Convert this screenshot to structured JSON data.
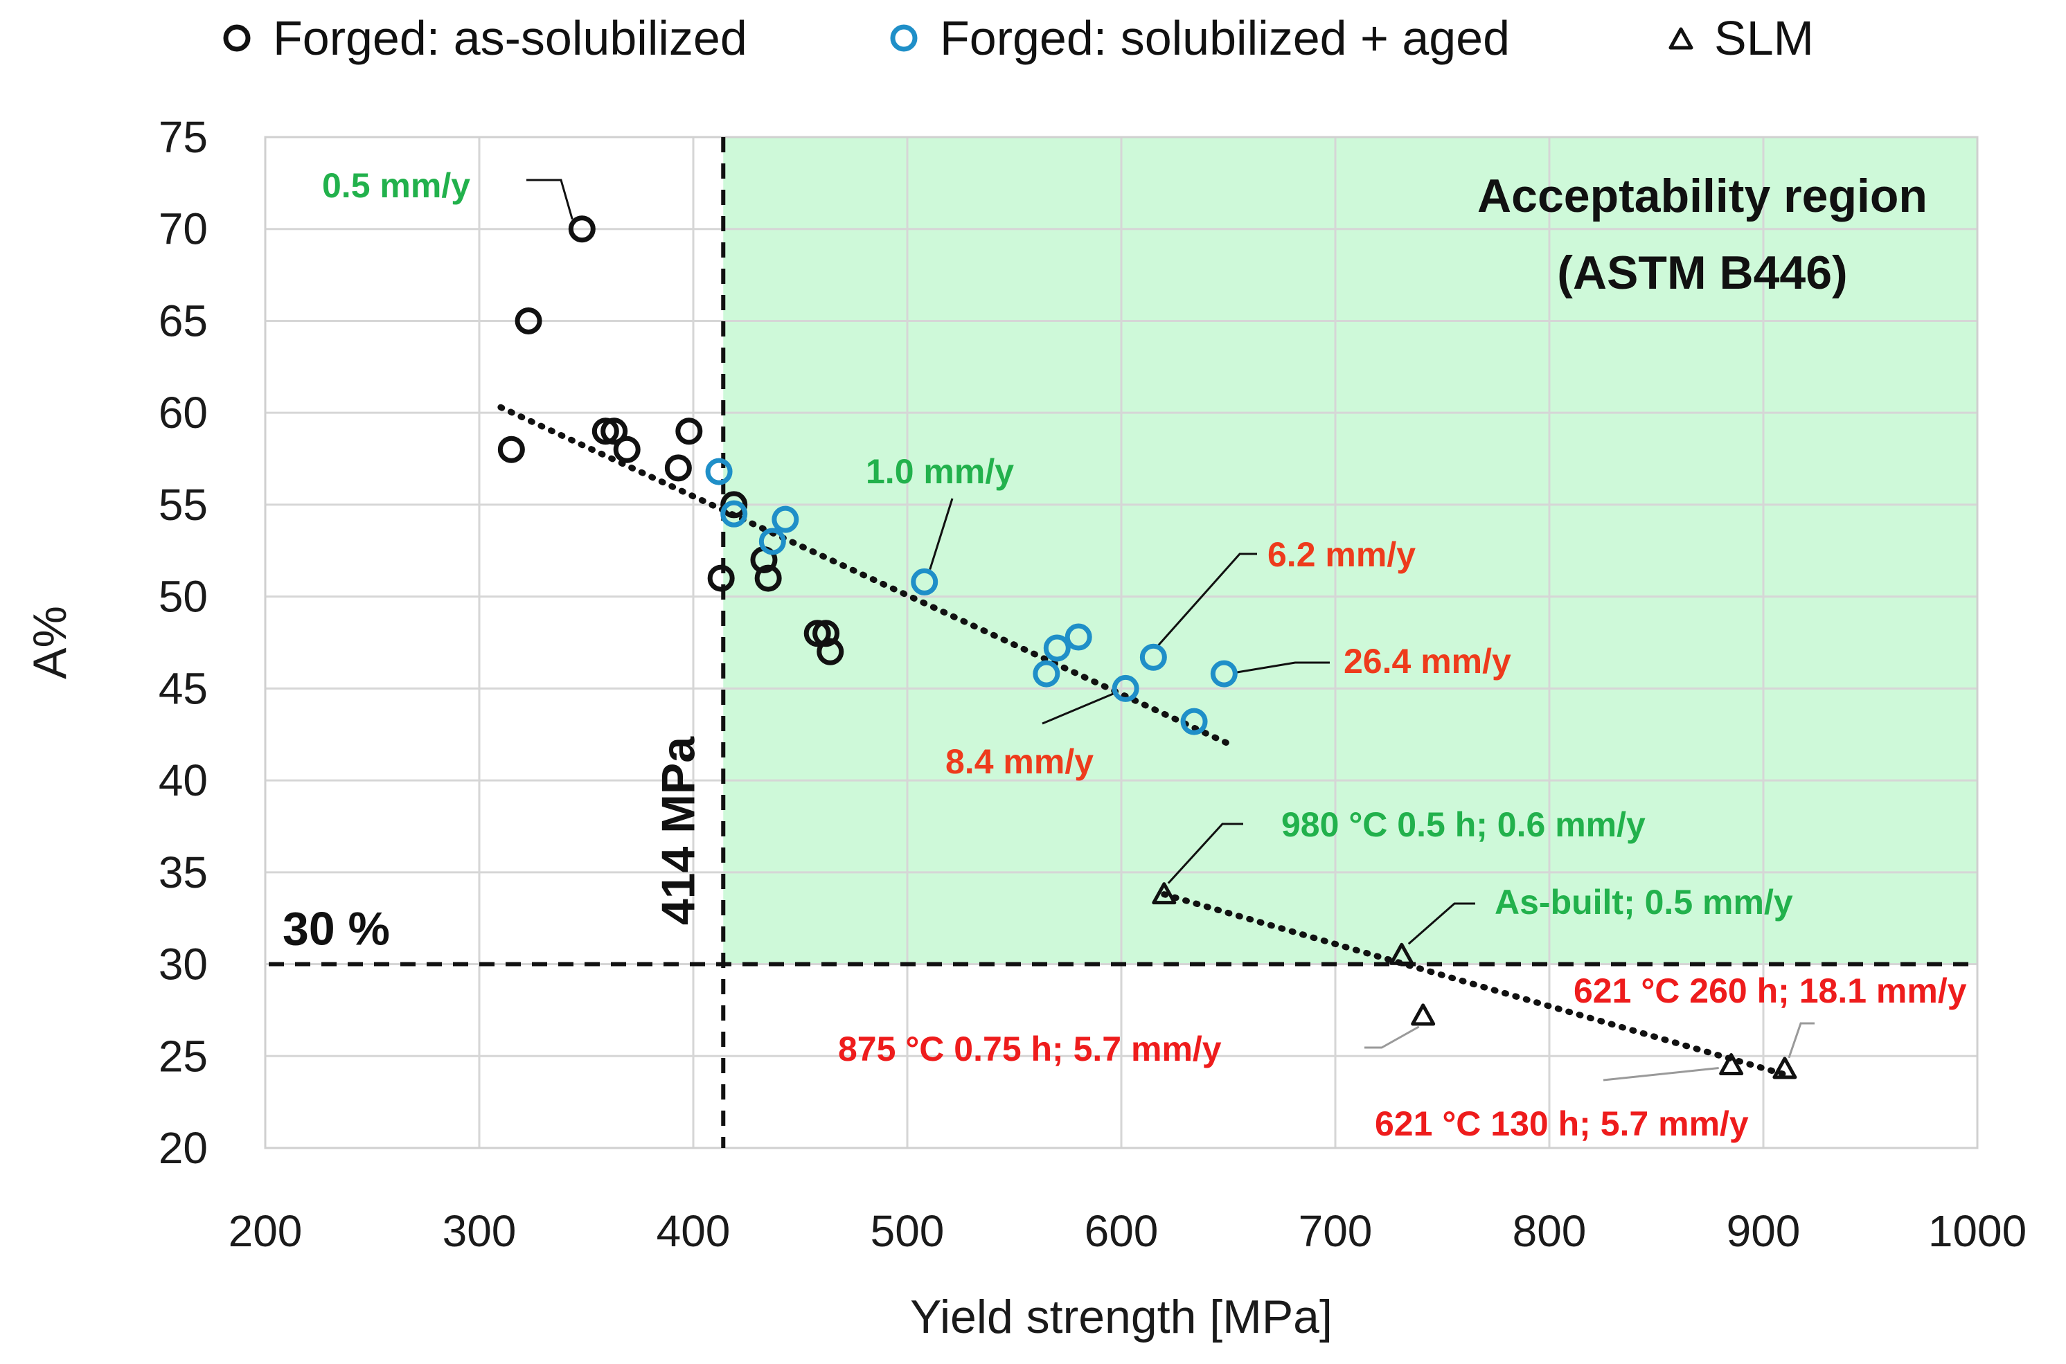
{
  "chart_data": {
    "type": "scatter",
    "title": "",
    "xlabel": "Yield strength [MPa]",
    "ylabel": "A%",
    "xlim": [
      200,
      1000
    ],
    "ylim": [
      20,
      75
    ],
    "x_ticks": [
      200,
      300,
      400,
      500,
      600,
      700,
      800,
      900,
      1000
    ],
    "y_ticks": [
      20,
      25,
      30,
      35,
      40,
      45,
      50,
      55,
      60,
      65,
      70,
      75
    ],
    "grid": true,
    "legend_position": "top",
    "series": [
      {
        "name": "Forged: as-solubilized",
        "marker": "circle",
        "color": "#111111",
        "points": [
          {
            "x": 348,
            "y": 70
          },
          {
            "x": 323,
            "y": 65
          },
          {
            "x": 315,
            "y": 58
          },
          {
            "x": 359,
            "y": 59
          },
          {
            "x": 363,
            "y": 59
          },
          {
            "x": 369,
            "y": 58
          },
          {
            "x": 393,
            "y": 57
          },
          {
            "x": 398,
            "y": 59
          },
          {
            "x": 413,
            "y": 51
          },
          {
            "x": 419,
            "y": 55
          },
          {
            "x": 433,
            "y": 52
          },
          {
            "x": 435,
            "y": 51
          },
          {
            "x": 458,
            "y": 48
          },
          {
            "x": 462,
            "y": 48
          },
          {
            "x": 464,
            "y": 47
          }
        ]
      },
      {
        "name": "Forged: solubilized + aged",
        "marker": "circle",
        "color": "#1f8fc8",
        "points": [
          {
            "x": 412,
            "y": 56.8
          },
          {
            "x": 419,
            "y": 54.5
          },
          {
            "x": 437,
            "y": 53
          },
          {
            "x": 443,
            "y": 54.2
          },
          {
            "x": 508,
            "y": 50.8
          },
          {
            "x": 565,
            "y": 45.8
          },
          {
            "x": 570,
            "y": 47.2
          },
          {
            "x": 580,
            "y": 47.8
          },
          {
            "x": 602,
            "y": 45
          },
          {
            "x": 615,
            "y": 46.7
          },
          {
            "x": 634,
            "y": 43.2
          },
          {
            "x": 648,
            "y": 45.8
          }
        ]
      },
      {
        "name": "SLM",
        "marker": "triangle",
        "color": "#111111",
        "points": [
          {
            "x": 620,
            "y": 33.8
          },
          {
            "x": 731,
            "y": 30.5
          },
          {
            "x": 741,
            "y": 27.2
          },
          {
            "x": 885,
            "y": 24.5
          },
          {
            "x": 910,
            "y": 24.3
          }
        ]
      }
    ],
    "trendlines": [
      {
        "style": "dotted",
        "color": "#111111",
        "from": {
          "x": 310,
          "y": 60.3
        },
        "to": {
          "x": 650,
          "y": 42
        }
      },
      {
        "style": "dotted",
        "color": "#111111",
        "from": {
          "x": 620,
          "y": 33.8
        },
        "to": {
          "x": 910,
          "y": 24
        }
      }
    ],
    "thresholds": [
      {
        "axis": "x",
        "value": 414,
        "label": "414 MPa"
      },
      {
        "axis": "y",
        "value": 30,
        "label": "30 %"
      }
    ],
    "region": {
      "label_line1": "Acceptability region",
      "label_line2": "(ASTM B446)",
      "x_min": 414,
      "x_max": 1000,
      "y_min": 30,
      "y_max": 75,
      "color": "#cef9d9"
    },
    "annotations": [
      {
        "text": "0.5 mm/y",
        "color": "#22b14c",
        "x": 348,
        "y": 70
      },
      {
        "text": "1.0 mm/y",
        "color": "#22b14c",
        "x": 508,
        "y": 50.8
      },
      {
        "text": "6.2 mm/y",
        "color": "#ee3b1c",
        "x": 615,
        "y": 46.7
      },
      {
        "text": "26.4 mm/y",
        "color": "#ee3b1c",
        "x": 648,
        "y": 45.8
      },
      {
        "text": "8.4 mm/y",
        "color": "#ee3b1c",
        "x": 602,
        "y": 45
      },
      {
        "text": "980 °C 0.5 h; 0.6 mm/y",
        "color": "#22b14c",
        "x": 620,
        "y": 33.8
      },
      {
        "text": "As-built; 0.5 mm/y",
        "color": "#22b14c",
        "x": 731,
        "y": 30.5
      },
      {
        "text": "621 °C 260 h; 18.1 mm/y",
        "color": "#ee1c1c",
        "x": 910,
        "y": 24.3
      },
      {
        "text": "875 °C 0.75 h; 5.7 mm/y",
        "color": "#ee1c1c",
        "x": 741,
        "y": 27.2
      },
      {
        "text": "621 °C 130 h; 5.7 mm/y",
        "color": "#ee1c1c",
        "x": 885,
        "y": 24.5
      }
    ]
  }
}
